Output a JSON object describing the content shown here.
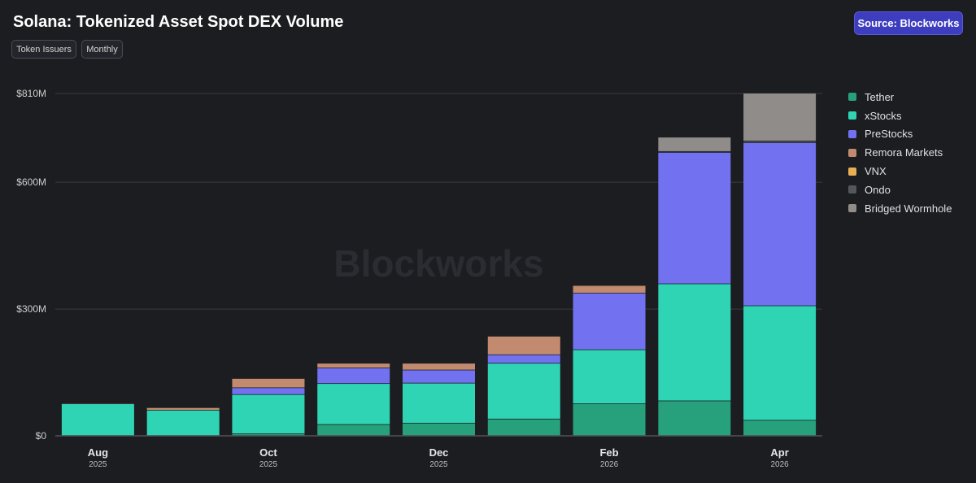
{
  "header": {
    "title": "Solana: Tokenized Asset Spot DEX Volume",
    "source_label": "Source: Blockworks",
    "filters": [
      "Token Issuers",
      "Monthly"
    ]
  },
  "watermark": "Blockworks",
  "colors": {
    "background": "#1c1d21",
    "accent": "#3d3dbf"
  },
  "chart_data": {
    "type": "bar",
    "stacked": true,
    "categories": [
      "Aug 2025",
      "Sep 2025",
      "Oct 2025",
      "Nov 2025",
      "Dec 2025",
      "Jan 2026",
      "Feb 2026",
      "Mar 2026",
      "Apr 2026"
    ],
    "x_tick_labels": [
      {
        "category": 0,
        "month": "Aug",
        "year": "2025"
      },
      {
        "category": 2,
        "month": "Oct",
        "year": "2025"
      },
      {
        "category": 4,
        "month": "Dec",
        "year": "2025"
      },
      {
        "category": 6,
        "month": "Feb",
        "year": "2026"
      },
      {
        "category": 8,
        "month": "Apr",
        "year": "2026"
      }
    ],
    "y_ticks": [
      {
        "value": 0,
        "label": "$0"
      },
      {
        "value": 300,
        "label": "$300M"
      },
      {
        "value": 600,
        "label": "$600M"
      },
      {
        "value": 810,
        "label": "$810M"
      }
    ],
    "ylim": [
      0,
      810
    ],
    "grid": true,
    "legend_position": "right",
    "series": [
      {
        "name": "Tether",
        "color": "#26a17b",
        "values": [
          0,
          0,
          4,
          26,
          29,
          39,
          75,
          82,
          36
        ]
      },
      {
        "name": "xStocks",
        "color": "#2fd4b4",
        "values": [
          75,
          60,
          93,
          97,
          95,
          132,
          128,
          277,
          271
        ]
      },
      {
        "name": "PreStocks",
        "color": "#7272f0",
        "values": [
          0,
          0,
          16,
          37,
          31,
          20,
          134,
          311,
          386
        ]
      },
      {
        "name": "Remora Markets",
        "color": "#c28b6f",
        "values": [
          2,
          6,
          22,
          11,
          16,
          44,
          18,
          0,
          0
        ]
      },
      {
        "name": "VNX",
        "color": "#e8ae56",
        "values": [
          0,
          0,
          0,
          0,
          0,
          0,
          0,
          0,
          0
        ]
      },
      {
        "name": "Ondo",
        "color": "#55565b",
        "values": [
          0,
          0,
          0,
          0,
          0,
          0,
          0,
          2,
          4
        ]
      },
      {
        "name": "Bridged Wormhole",
        "color": "#8f8c89",
        "values": [
          0,
          0,
          0,
          0,
          0,
          0,
          0,
          34,
          113
        ]
      }
    ]
  }
}
